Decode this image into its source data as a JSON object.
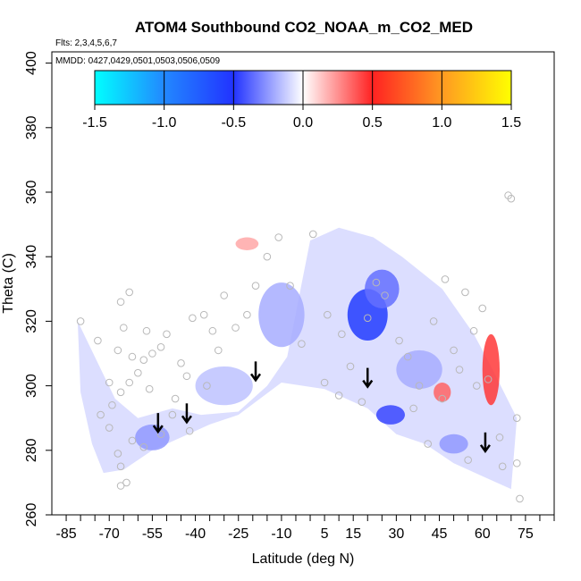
{
  "chart_data": {
    "type": "heatmap",
    "title": "ATOM4 Southbound CO2_NOAA_m_CO2_MED",
    "flights_note": "Flts: 2,3,4,5,6,7",
    "dates_note": "MMDD: 0427,0429,0501,0503,0506,0509",
    "xlabel": "Latitude (deg N)",
    "ylabel": "Theta (C)",
    "xlim": [
      -90,
      85
    ],
    "ylim": [
      260,
      405
    ],
    "x_tick_values": [
      -85,
      -80,
      -75,
      -70,
      -65,
      -60,
      -55,
      -50,
      -45,
      -40,
      -35,
      -30,
      -25,
      -20,
      -15,
      -10,
      -5,
      0,
      5,
      10,
      15,
      20,
      25,
      30,
      35,
      40,
      45,
      50,
      55,
      60,
      65,
      70,
      75,
      80,
      85
    ],
    "x_tick_labels": [
      "-85",
      "-70",
      "-55",
      "-40",
      "-25",
      "-10",
      "5",
      "15",
      "30",
      "45",
      "60",
      "75"
    ],
    "x_tick_label_values": [
      -85,
      -70,
      -55,
      -40,
      -25,
      -10,
      5,
      15,
      30,
      45,
      60,
      75
    ],
    "y_ticks": [
      "260",
      "280",
      "300",
      "320",
      "340",
      "360",
      "380",
      "400"
    ],
    "y_tick_values": [
      260,
      280,
      300,
      320,
      340,
      360,
      380,
      400
    ],
    "colorbar": {
      "range": [
        -1.5,
        1.5
      ],
      "ticks": [
        "-1.5",
        "-1.0",
        "-0.5",
        "0.0",
        "0.5",
        "1.0",
        "1.5"
      ],
      "tick_values": [
        -1.5,
        -1.0,
        -0.5,
        0.0,
        0.5,
        1.0,
        1.5
      ],
      "stops": [
        {
          "v": -1.5,
          "color": "#00ffff"
        },
        {
          "v": -1.0,
          "color": "#2288ff"
        },
        {
          "v": -0.5,
          "color": "#2233ff"
        },
        {
          "v": 0.0,
          "color": "#ffffff"
        },
        {
          "v": 0.5,
          "color": "#ff2222"
        },
        {
          "v": 1.0,
          "color": "#ff9922"
        },
        {
          "v": 1.5,
          "color": "#ffff00"
        }
      ]
    },
    "coverage_outline": [
      [
        -81,
        320
      ],
      [
        -68,
        296
      ],
      [
        -60,
        290
      ],
      [
        -48,
        293
      ],
      [
        -38,
        291
      ],
      [
        -25,
        292
      ],
      [
        -15,
        300
      ],
      [
        -8,
        309
      ],
      [
        0,
        345
      ],
      [
        10,
        349
      ],
      [
        22,
        346
      ],
      [
        32,
        340
      ],
      [
        46,
        330
      ],
      [
        57,
        316
      ],
      [
        63,
        306
      ],
      [
        72,
        290
      ],
      [
        70,
        268
      ],
      [
        60,
        272
      ],
      [
        50,
        276
      ],
      [
        40,
        282
      ],
      [
        30,
        285
      ],
      [
        20,
        293
      ],
      [
        5,
        299
      ],
      [
        -10,
        301
      ],
      [
        -25,
        291
      ],
      [
        -35,
        288
      ],
      [
        -45,
        284
      ],
      [
        -55,
        280
      ],
      [
        -65,
        274
      ],
      [
        -72,
        273
      ],
      [
        -76,
        282
      ],
      [
        -80,
        298
      ]
    ],
    "anomaly_regions": [
      {
        "lat": 20,
        "theta": 322,
        "dlat": 7,
        "dtheta": 8,
        "value": -0.55
      },
      {
        "lat": 25,
        "theta": 330,
        "dlat": 6,
        "dtheta": 6,
        "value": -0.35
      },
      {
        "lat": -10,
        "theta": 322,
        "dlat": 8,
        "dtheta": 10,
        "value": -0.2
      },
      {
        "lat": -30,
        "theta": 300,
        "dlat": 10,
        "dtheta": 6,
        "value": -0.15
      },
      {
        "lat": 28,
        "theta": 291,
        "dlat": 5,
        "dtheta": 3,
        "value": -0.45
      },
      {
        "lat": 38,
        "theta": 305,
        "dlat": 8,
        "dtheta": 6,
        "value": -0.2
      },
      {
        "lat": -55,
        "theta": 284,
        "dlat": 6,
        "dtheta": 4,
        "value": -0.25
      },
      {
        "lat": 50,
        "theta": 282,
        "dlat": 5,
        "dtheta": 3,
        "value": -0.25
      },
      {
        "lat": 63,
        "theta": 305,
        "dlat": 3,
        "dtheta": 11,
        "value": 0.45
      },
      {
        "lat": 46,
        "theta": 298,
        "dlat": 3,
        "dtheta": 3,
        "value": 0.35
      },
      {
        "lat": -22,
        "theta": 344,
        "dlat": 4,
        "dtheta": 2,
        "value": 0.2
      }
    ],
    "observations": [
      [
        -80,
        320
      ],
      [
        -74,
        314
      ],
      [
        -70,
        301
      ],
      [
        -69,
        294
      ],
      [
        -66,
        326
      ],
      [
        -67,
        311
      ],
      [
        -66,
        298
      ],
      [
        -65,
        318
      ],
      [
        -63,
        329
      ],
      [
        -62,
        309
      ],
      [
        -60,
        304
      ],
      [
        -58,
        308
      ],
      [
        -56,
        299
      ],
      [
        -55,
        310
      ],
      [
        -52,
        312
      ],
      [
        -50,
        316
      ],
      [
        -47,
        296
      ],
      [
        -45,
        307
      ],
      [
        -43,
        303
      ],
      [
        -41,
        321
      ],
      [
        -37,
        322
      ],
      [
        -34,
        317
      ],
      [
        -32,
        311
      ],
      [
        -30,
        328
      ],
      [
        -26,
        318
      ],
      [
        -22,
        322
      ],
      [
        -19,
        331
      ],
      [
        -15,
        340
      ],
      [
        -11,
        346
      ],
      [
        -7,
        331
      ],
      [
        -3,
        313
      ],
      [
        1,
        347
      ],
      [
        6,
        322
      ],
      [
        11,
        316
      ],
      [
        14,
        306
      ],
      [
        20,
        321
      ],
      [
        23,
        332
      ],
      [
        26,
        328
      ],
      [
        31,
        314
      ],
      [
        34,
        309
      ],
      [
        38,
        300
      ],
      [
        43,
        320
      ],
      [
        46,
        296
      ],
      [
        47,
        333
      ],
      [
        50,
        311
      ],
      [
        52,
        305
      ],
      [
        54,
        329
      ],
      [
        57,
        317
      ],
      [
        58,
        300
      ],
      [
        60,
        324
      ],
      [
        62,
        302
      ],
      [
        66,
        284
      ],
      [
        67,
        275
      ],
      [
        69,
        359
      ],
      [
        70,
        358
      ],
      [
        72,
        290
      ],
      [
        72,
        276
      ],
      [
        73,
        265
      ],
      [
        -73,
        291
      ],
      [
        -70,
        287
      ],
      [
        -67,
        279
      ],
      [
        -66,
        275
      ],
      [
        -64,
        270
      ],
      [
        -66,
        269
      ],
      [
        -62,
        283
      ],
      [
        -58,
        281
      ],
      [
        -52,
        285
      ],
      [
        -48,
        291
      ],
      [
        -57,
        317
      ],
      [
        -63,
        301
      ],
      [
        -42,
        286
      ],
      [
        -36,
        300
      ],
      [
        5,
        301
      ],
      [
        10,
        297
      ],
      [
        18,
        295
      ],
      [
        36,
        293
      ],
      [
        41,
        282
      ],
      [
        55,
        277
      ]
    ],
    "arrows": [
      {
        "lat": -53,
        "theta": 286
      },
      {
        "lat": -43,
        "theta": 289
      },
      {
        "lat": -19,
        "theta": 302
      },
      {
        "lat": 20,
        "theta": 300
      },
      {
        "lat": 61,
        "theta": 280
      }
    ]
  }
}
